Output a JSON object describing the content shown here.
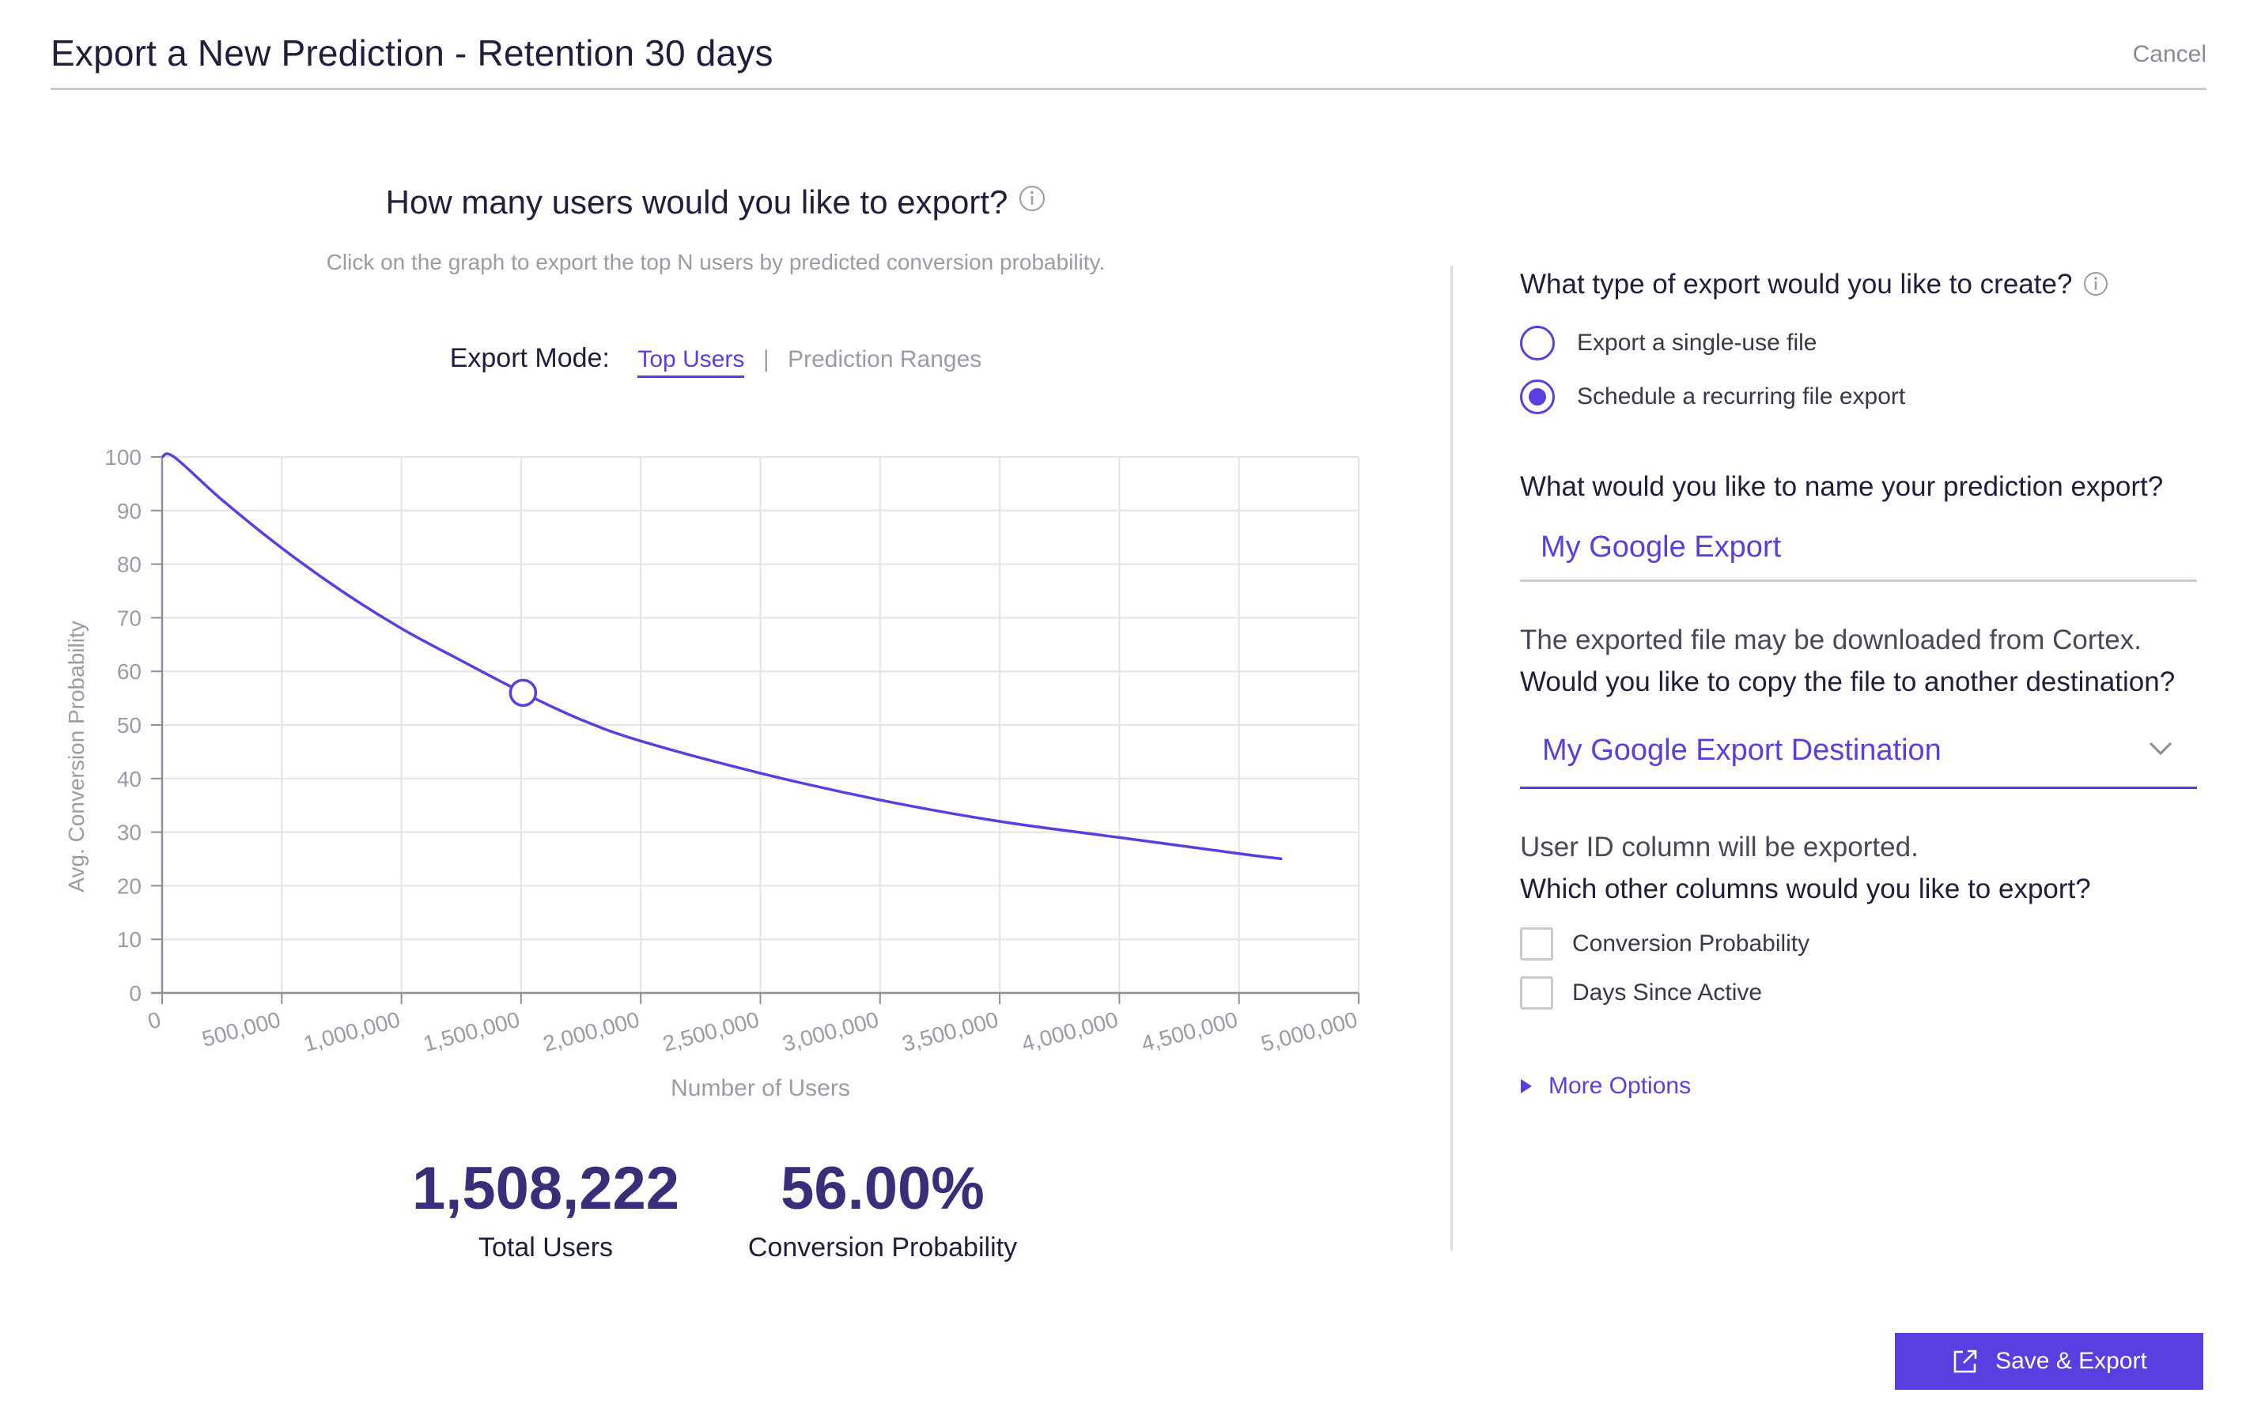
{
  "header": {
    "title": "Export a New Prediction - Retention 30 days",
    "cancel_label": "Cancel"
  },
  "left": {
    "question": "How many users would you like to export?",
    "subtitle": "Click on the graph to export the top N users by predicted conversion probability.",
    "export_mode": {
      "label": "Export Mode:",
      "options": [
        "Top Users",
        "Prediction Ranges"
      ],
      "separator": "|",
      "selected": "Top Users"
    }
  },
  "chart_data": {
    "type": "line",
    "title": "",
    "xlabel": "Number of Users",
    "ylabel": "Avg. Conversion Probability",
    "xlim": [
      0,
      5000000
    ],
    "ylim": [
      0,
      100
    ],
    "x_ticks": [
      0,
      500000,
      1000000,
      1500000,
      2000000,
      2500000,
      3000000,
      3500000,
      4000000,
      4500000,
      5000000
    ],
    "x_tick_labels": [
      "0",
      "500,000",
      "1,000,000",
      "1,500,000",
      "2,000,000",
      "2,500,000",
      "3,000,000",
      "3,500,000",
      "4,000,000",
      "4,500,000",
      "5,000,000"
    ],
    "y_ticks": [
      0,
      10,
      20,
      30,
      40,
      50,
      60,
      70,
      80,
      90,
      100
    ],
    "grid": true,
    "series": [
      {
        "color": "#5a3fe0",
        "x": [
          0,
          50000,
          250000,
          500000,
          750000,
          1000000,
          1250000,
          1508222,
          1750000,
          2000000,
          2500000,
          3000000,
          3500000,
          4000000,
          4500000,
          4680000
        ],
        "y": [
          100,
          100,
          92,
          83,
          75,
          68,
          62,
          56,
          51,
          47,
          41,
          36,
          32,
          29,
          26,
          25
        ]
      }
    ],
    "selected_point": {
      "x": 1508222,
      "y": 56
    }
  },
  "stats": {
    "total_users": {
      "value": "1,508,222",
      "label": "Total Users"
    },
    "conversion_probability": {
      "value": "56.00%",
      "label": "Conversion Probability"
    }
  },
  "right": {
    "export_type": {
      "question": "What type of export would you like to create?",
      "options": [
        {
          "label": "Export a single-use file",
          "checked": false
        },
        {
          "label": "Schedule a recurring file export",
          "checked": true
        }
      ]
    },
    "name": {
      "question": "What would you like to name your prediction export?",
      "value": "My Google Export"
    },
    "destination": {
      "note": "The exported file may be downloaded from Cortex.",
      "question": "Would you like to copy the file to another destination?",
      "value": "My Google Export Destination"
    },
    "columns": {
      "note": "User ID column will be exported.",
      "question": "Which other columns would you like to export?",
      "options": [
        {
          "label": "Conversion Probability",
          "checked": false
        },
        {
          "label": "Days Since Active",
          "checked": false
        }
      ]
    },
    "more_options_label": "More Options"
  },
  "footer": {
    "save_label": "Save & Export"
  },
  "colors": {
    "accent": "#5a3fe0",
    "stat_value": "#3c2d7a",
    "muted": "#9b9aa6"
  }
}
